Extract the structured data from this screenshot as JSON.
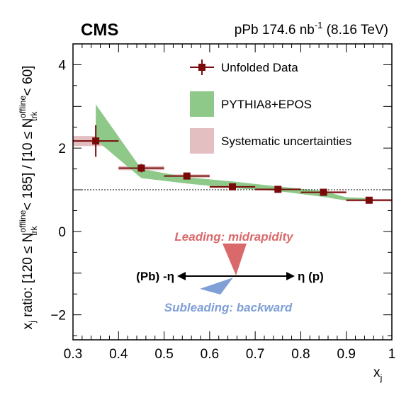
{
  "experiment_label": "CMS",
  "lumi_label": {
    "prefix": "pPb 174.6 nb",
    "sup": "-1",
    "suffix": " (8.16 TeV)"
  },
  "y_axis_label": {
    "part1": "x",
    "part1_sub": "j",
    "part2": " ratio: [120 ≤ N",
    "sup1": "offline",
    "sub1": "trk",
    "part3": " < 185] / [10 ≤ N",
    "sup2": "offline",
    "sub2": "trk",
    "part4": " < 60]"
  },
  "x_axis_label": {
    "main": "x",
    "sub": "j"
  },
  "legend": {
    "data": "Unfolded Data",
    "model": "PYTHIA8+EPOS",
    "syst": "Systematic uncertainties"
  },
  "diagram": {
    "leading": "Leading: midrapidity",
    "subleading": "Subleading: backward",
    "left": "(Pb) -η",
    "right": "η (p)",
    "leading_color": "#d9696b",
    "subleading_color": "#7f9fd6"
  },
  "colors": {
    "data": "#7a0a0a",
    "model_band": "#8ec98a",
    "syst_band": "#e3bfc1"
  },
  "chart_data": {
    "type": "scatter",
    "xlim": [
      0.3,
      1.0
    ],
    "ylim": [
      -2.6,
      4.5
    ],
    "xticks": [
      0.3,
      0.4,
      0.5,
      0.6,
      0.7,
      0.8,
      0.9,
      1.0
    ],
    "xtick_labels": [
      "0.3",
      "0.4",
      "0.5",
      "0.6",
      "0.7",
      "0.8",
      "0.9",
      "1"
    ],
    "yticks": [
      -2,
      0,
      2,
      4
    ],
    "ytick_labels": [
      "−2",
      "0",
      "2",
      "4"
    ],
    "reference_line": 1.0,
    "data_series": {
      "name": "Unfolded Data",
      "x": [
        0.35,
        0.45,
        0.55,
        0.65,
        0.75,
        0.85,
        0.95
      ],
      "x_halfwidth": [
        0.05,
        0.05,
        0.05,
        0.05,
        0.05,
        0.05,
        0.05
      ],
      "y": [
        2.17,
        1.52,
        1.33,
        1.07,
        1.01,
        0.94,
        0.75
      ],
      "stat_err": [
        0.38,
        0.1,
        0.06,
        0.06,
        0.05,
        0.05,
        0.06
      ],
      "syst_err": [
        0.12,
        0.05,
        0.04,
        0.03,
        0.03,
        0.03,
        0.03
      ]
    },
    "model_band": {
      "name": "PYTHIA8+EPOS",
      "x": [
        0.35,
        0.45,
        0.55,
        0.65,
        0.75,
        0.85,
        0.9,
        0.95
      ],
      "y_high": [
        3.05,
        1.5,
        1.3,
        1.2,
        1.08,
        0.97,
        0.82,
        0.8
      ],
      "y_low": [
        2.2,
        1.28,
        1.15,
        1.04,
        0.97,
        0.83,
        0.74,
        0.73
      ]
    },
    "legend_position": "top-right",
    "grid": false
  }
}
